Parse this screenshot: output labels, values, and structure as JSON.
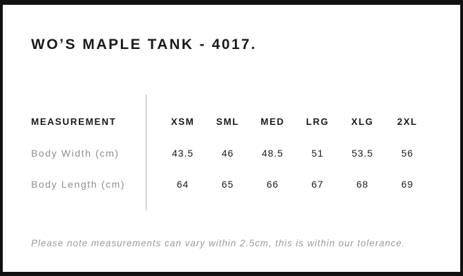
{
  "header": {
    "title": "WO’S MAPLE TANK - 4017."
  },
  "table": {
    "measurement_label": "MEASUREMENT",
    "sizes": [
      "XSM",
      "SML",
      "MED",
      "LRG",
      "XLG",
      "2XL"
    ],
    "rows": [
      {
        "label": "Body Width (cm)",
        "values": [
          "43.5",
          "46",
          "48.5",
          "51",
          "53.5",
          "56"
        ]
      },
      {
        "label": "Body Length (cm)",
        "values": [
          "64",
          "65",
          "66",
          "67",
          "68",
          "69"
        ]
      }
    ]
  },
  "footer": {
    "note": "Please note measurements can vary within 2.5cm, this is within our tolerance."
  },
  "colors": {
    "frame_border": "#111111",
    "text_primary": "#1a1a1a",
    "text_muted": "#8e8e8e",
    "note_text": "#9a9a9a",
    "divider": "#b3b3b3",
    "background": "#ffffff"
  }
}
